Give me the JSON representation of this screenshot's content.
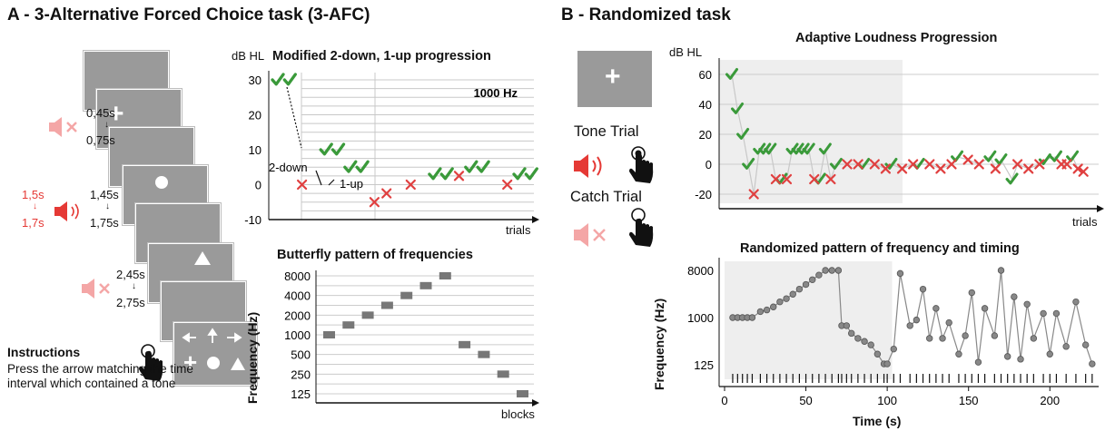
{
  "panel_a": {
    "title": "A - 3-Alternative Forced Choice task (3-AFC)",
    "timing": {
      "t1_start": "0,45s",
      "t1_end": "0,75s",
      "t2_start": "1,45s",
      "t2_end": "1,75s",
      "t2_red_start": "1,5s",
      "t2_red_end": "1,7s",
      "t3_start": "2,45s",
      "t3_end": "2,75s"
    },
    "instructions": {
      "heading": "Instructions",
      "body": "Press the arrow matching the time interval which contained a tone"
    },
    "staircase": {
      "title": "Modified 2-down, 1-up progression",
      "ylabel": "dB HL",
      "xlabel": "trials",
      "freq_label": "1000 Hz",
      "yticks": [
        "30",
        "20",
        "10",
        "0",
        "-10"
      ],
      "note_down": "2-down",
      "note_up": "1-up"
    },
    "butterfly": {
      "title": "Butterfly pattern of frequencies",
      "ylabel": "Frequency  (Hz)",
      "xlabel": "blocks",
      "yticks": [
        "8000",
        "4000",
        "2000",
        "1000",
        "500",
        "250",
        "125"
      ]
    }
  },
  "panel_b": {
    "title": "B - Randomized task",
    "tone_trial": "Tone Trial",
    "catch_trial": "Catch Trial",
    "loudness": {
      "title": "Adaptive Loudness Progression",
      "ylabel": "dB HL",
      "xlabel": "trials",
      "yticks": [
        "60",
        "40",
        "20",
        "0",
        "-20"
      ]
    },
    "random": {
      "title": "Randomized pattern of frequency and timing",
      "ylabel": "Frequency  (Hz)",
      "xlabel": "Time (s)",
      "yticks": [
        "8000",
        "1000",
        "125"
      ],
      "xticks": [
        "0",
        "50",
        "100",
        "150",
        "200"
      ]
    }
  },
  "colors": {
    "check": "#3a9a3a",
    "cross": "#e04040",
    "speaker": "#e53935",
    "speaker_muted": "#f4a6a6",
    "screen": "#9a9a9a",
    "shade": "#eeeeee"
  },
  "icons": [
    "plus-symbol",
    "circle-symbol",
    "triangle-symbol",
    "speaker-icon",
    "muted-speaker-icon",
    "hand-press-icon",
    "check-icon",
    "cross-icon",
    "arrow-keys-icon"
  ],
  "chart_data": [
    {
      "type": "scatter",
      "title": "Modified 2-down, 1-up progression",
      "xlabel": "trials",
      "ylabel": "dB HL",
      "ylim": [
        -10,
        30
      ],
      "series": [
        {
          "name": "correct",
          "x": [
            1,
            2,
            5,
            6,
            7,
            8,
            14,
            15,
            17,
            18,
            21,
            22
          ],
          "y": [
            30,
            30,
            10,
            10,
            5,
            5,
            3,
            3,
            5,
            5,
            3,
            3
          ]
        },
        {
          "name": "incorrect",
          "x": [
            3,
            9,
            10,
            12,
            16,
            20
          ],
          "y": [
            0,
            -5,
            -2.5,
            0,
            2.5,
            0
          ]
        }
      ]
    },
    {
      "type": "scatter",
      "title": "Butterfly pattern of frequencies",
      "xlabel": "blocks",
      "ylabel": "Frequency  (Hz)",
      "y_scale": "log",
      "x": [
        1,
        2,
        3,
        4,
        5,
        6,
        7,
        8,
        9,
        10,
        11
      ],
      "y": [
        1000,
        1414,
        2000,
        2828,
        4000,
        5657,
        8000,
        707,
        500,
        250,
        125
      ]
    },
    {
      "type": "scatter",
      "title": "Adaptive Loudness Progression",
      "xlabel": "trials",
      "ylabel": "dB HL",
      "ylim": [
        -25,
        65
      ],
      "series": [
        {
          "name": "correct",
          "x": [
            1,
            2,
            3,
            4,
            6,
            7,
            8,
            10,
            12,
            13,
            14,
            15,
            17,
            18,
            20,
            25,
            30,
            35,
            42,
            48,
            50,
            52,
            58,
            60,
            63
          ],
          "y": [
            60,
            37,
            20,
            0,
            10,
            10,
            10,
            -10,
            10,
            10,
            10,
            10,
            -10,
            10,
            0,
            0,
            0,
            0,
            5,
            5,
            3,
            -10,
            3,
            5,
            5
          ]
        },
        {
          "name": "incorrect",
          "x": [
            5,
            9,
            11,
            16,
            19,
            22,
            24,
            27,
            29,
            32,
            34,
            37,
            39,
            41,
            44,
            46,
            49,
            53,
            55,
            57,
            61,
            62,
            64,
            65
          ],
          "y": [
            -20,
            -10,
            -10,
            -10,
            -10,
            0,
            0,
            0,
            -3,
            -3,
            0,
            0,
            -3,
            0,
            3,
            0,
            -3,
            0,
            -3,
            0,
            0,
            0,
            -3,
            -5
          ]
        }
      ]
    },
    {
      "type": "line",
      "title": "Randomized pattern of frequency and timing",
      "xlabel": "Time (s)",
      "ylabel": "Frequency  (Hz)",
      "y_scale": "log",
      "xlim": [
        0,
        230
      ],
      "x": [
        5,
        8,
        11,
        14,
        17,
        22,
        26,
        30,
        34,
        38,
        42,
        46,
        50,
        54,
        58,
        62,
        66,
        70,
        72,
        75,
        78,
        82,
        86,
        90,
        94,
        98,
        100,
        104,
        108,
        114,
        118,
        122,
        126,
        130,
        134,
        138,
        144,
        148,
        152,
        156,
        160,
        166,
        170,
        174,
        178,
        182,
        186,
        190,
        196,
        200,
        204,
        210,
        216,
        222,
        226
      ],
      "y": [
        1000,
        1000,
        1000,
        1000,
        1000,
        1300,
        1400,
        1600,
        2000,
        2300,
        2800,
        3500,
        4300,
        5300,
        6500,
        8000,
        8000,
        8000,
        700,
        700,
        500,
        400,
        350,
        300,
        200,
        130,
        130,
        250,
        7000,
        700,
        900,
        3500,
        400,
        1500,
        400,
        800,
        200,
        450,
        3000,
        140,
        1500,
        450,
        8000,
        180,
        2500,
        160,
        1800,
        400,
        1200,
        200,
        1200,
        280,
        2000,
        300,
        130
      ]
    }
  ]
}
